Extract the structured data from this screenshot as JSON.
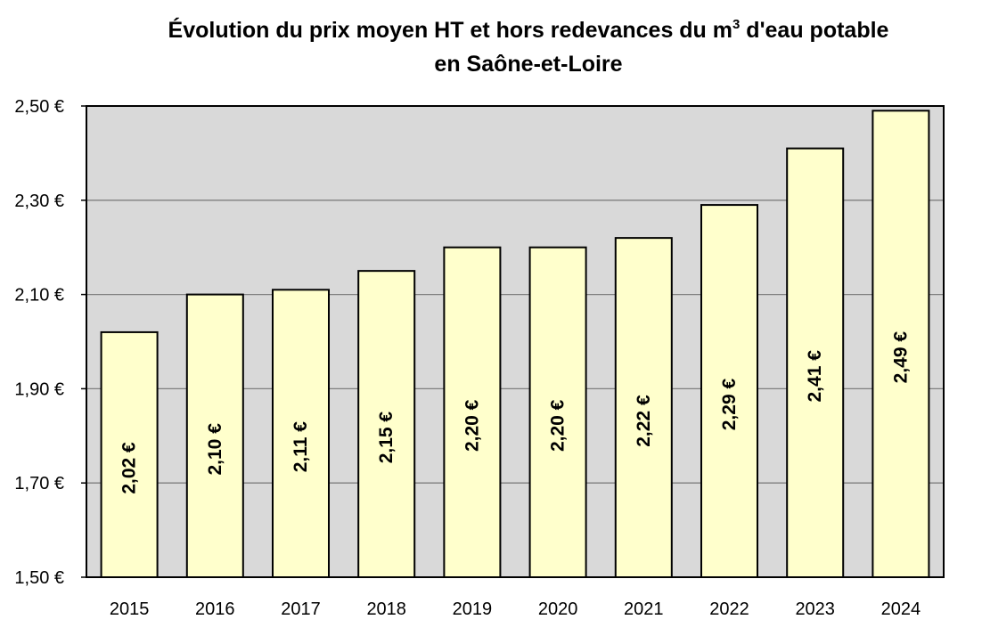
{
  "chart_data": {
    "type": "bar",
    "title_line1_before_sup": "Évolution du prix moyen HT et hors redevances du m",
    "title_sup": "3",
    "title_line1_after_sup": " d'eau potable",
    "title_line2": "en Saône-et-Loire",
    "xlabel": "",
    "ylabel": "",
    "categories": [
      "2015",
      "2016",
      "2017",
      "2018",
      "2019",
      "2020",
      "2021",
      "2022",
      "2023",
      "2024"
    ],
    "values": [
      2.02,
      2.1,
      2.11,
      2.15,
      2.2,
      2.2,
      2.22,
      2.29,
      2.41,
      2.49
    ],
    "data_labels": [
      "2,02 €",
      "2,10 €",
      "2,11 €",
      "2,15 €",
      "2,20 €",
      "2,20 €",
      "2,22 €",
      "2,29 €",
      "2,41 €",
      "2,49 €"
    ],
    "ylim": [
      1.5,
      2.5
    ],
    "yticks": [
      1.5,
      1.7,
      1.9,
      2.1,
      2.3,
      2.5
    ],
    "ytick_labels": [
      "1,50 €",
      "1,70 €",
      "1,90 €",
      "2,10 €",
      "2,30 €",
      "2,50 €"
    ],
    "grid": true,
    "legend": "none",
    "colors": {
      "plot_background": "#d9d9d9",
      "bar_fill": "#ffffcc",
      "bar_stroke": "#000000",
      "gridline": "#7f7f7f"
    }
  }
}
